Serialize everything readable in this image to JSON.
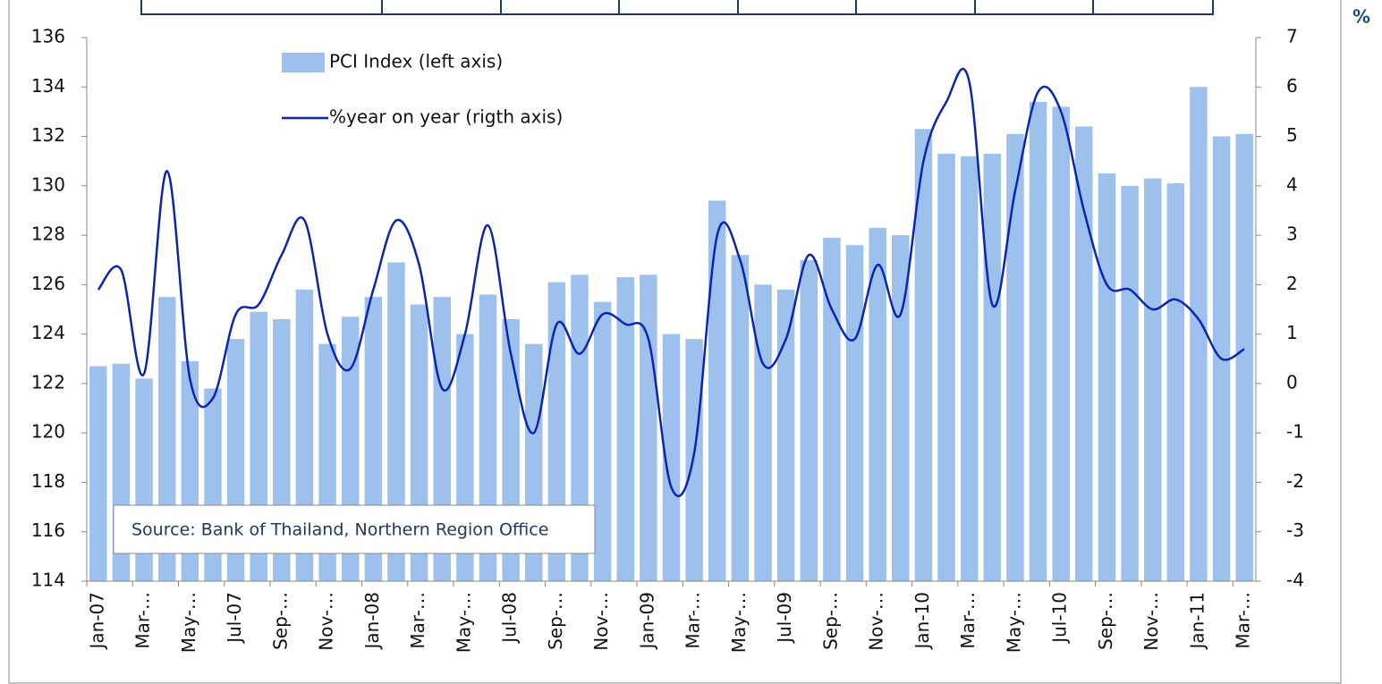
{
  "chart_data": {
    "type": "bar-line",
    "categories": [
      "Jan-07",
      null,
      "Mar-…",
      null,
      "May-…",
      null,
      "Jul-07",
      null,
      "Sep-…",
      null,
      "Nov-…",
      null,
      "Jan-08",
      null,
      "Mar-…",
      null,
      "May-…",
      null,
      "Jul-08",
      null,
      "Sep-…",
      null,
      "Nov-…",
      null,
      "Jan-09",
      null,
      "Mar-…",
      null,
      "May-…",
      null,
      "Jul-09",
      null,
      "Sep-…",
      null,
      "Nov-…",
      null,
      "Jan-10",
      null,
      "Mar-…",
      null,
      "May-…",
      null,
      "Jul-10",
      null,
      "Sep-…",
      null,
      "Nov-…",
      null,
      "Jan-11",
      null,
      "Mar-…"
    ],
    "series": [
      {
        "name": "PCI Index (left axis)",
        "color": "#9dc1ec",
        "type": "bar",
        "axis": "y",
        "values": [
          122.7,
          122.8,
          122.2,
          125.5,
          122.9,
          121.8,
          123.8,
          124.9,
          124.6,
          125.8,
          123.6,
          124.7,
          125.5,
          126.9,
          125.2,
          125.5,
          124.0,
          125.6,
          124.6,
          123.6,
          126.1,
          126.4,
          125.3,
          126.3,
          126.4,
          124.0,
          123.8,
          129.4,
          127.2,
          126.0,
          125.8,
          127.0,
          127.9,
          127.6,
          128.3,
          128.0,
          132.3,
          131.3,
          131.2,
          131.3,
          132.1,
          133.4,
          133.2,
          132.4,
          130.5,
          130.0,
          130.3,
          130.1,
          134.0,
          132.0,
          132.1
        ]
      },
      {
        "name": "%year on year (rigth axis)",
        "color": "#0b25b0",
        "type": "line",
        "axis": "y2",
        "values": [
          1.9,
          2.3,
          0.2,
          4.3,
          0.1,
          -0.3,
          1.4,
          1.6,
          2.6,
          3.3,
          1.0,
          0.3,
          1.9,
          3.3,
          2.4,
          -0.1,
          1.0,
          3.2,
          0.6,
          -1.0,
          1.2,
          0.6,
          1.4,
          1.2,
          0.9,
          -2.1,
          -1.4,
          3.0,
          2.5,
          0.4,
          0.9,
          2.6,
          1.5,
          0.9,
          2.4,
          1.4,
          4.5,
          5.7,
          6.1,
          1.6,
          3.9,
          5.9,
          5.5,
          3.5,
          2.0,
          1.9,
          1.5,
          1.7,
          1.3,
          0.5,
          0.7
        ]
      }
    ],
    "ylim": [
      114,
      136
    ],
    "yticks": [
      114,
      116,
      118,
      120,
      122,
      124,
      126,
      128,
      130,
      132,
      134,
      136
    ],
    "y2lim": [
      -4,
      7
    ],
    "y2ticks": [
      -4,
      -3,
      -2,
      -1,
      0,
      1,
      2,
      3,
      4,
      5,
      6,
      7
    ],
    "y2label": "%",
    "annotation": "Source: Bank of Thailand, Northern Region Office",
    "grid": false
  }
}
